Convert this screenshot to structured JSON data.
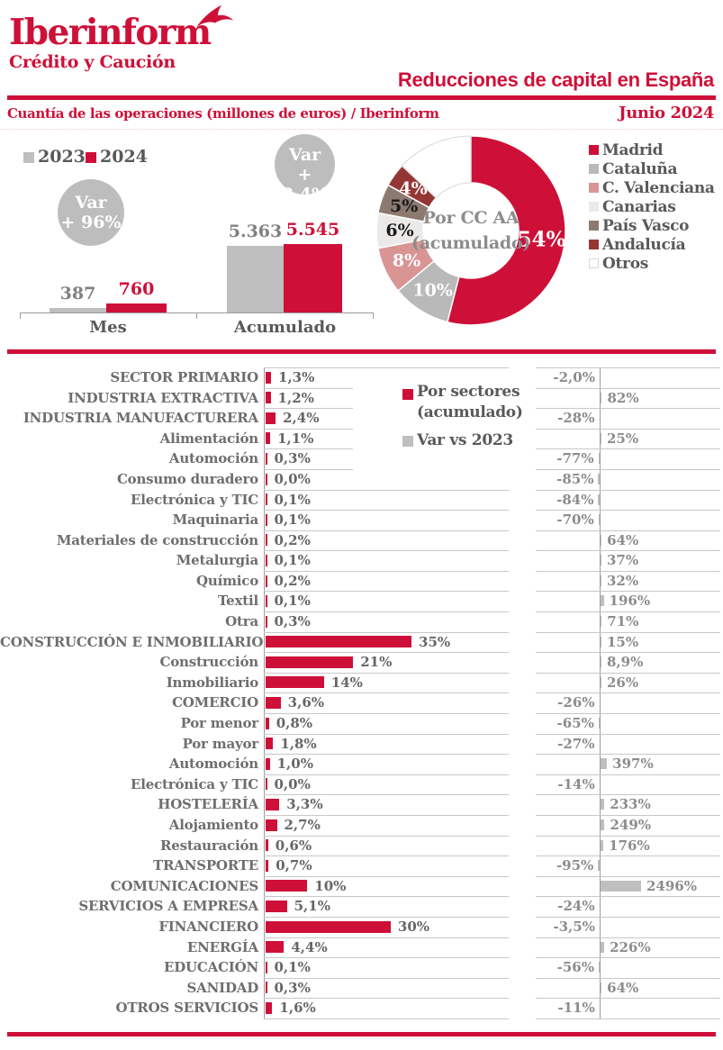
{
  "brand": {
    "name": "Iberinform",
    "tagline": "Crédito y Caución"
  },
  "header": {
    "title": "Reducciones de capital en España",
    "subtitle": "Cuantía de las operaciones (millones de euros) / Iberinform",
    "period": "Junio 2024"
  },
  "colors": {
    "red": "#CE1038",
    "gray_bar": "#BFBFBF",
    "badge_gray": "#BDBDBD",
    "text_dark": "#595959",
    "text_row": "#6E6E6E",
    "text_right": "#8C8C8C",
    "gridline": "#C8C8C8",
    "axis": "#9B9B9B"
  },
  "chart_data": [
    {
      "id": "amounts",
      "type": "bar",
      "title": "Cuantía de las operaciones (millones de euros)",
      "categories": [
        "Mes",
        "Acumulado"
      ],
      "series": [
        {
          "name": "2023",
          "color": "#BFBFBF",
          "values": [
            387,
            5363
          ],
          "value_labels": [
            "387",
            "5.363"
          ]
        },
        {
          "name": "2024",
          "color": "#CE1038",
          "values": [
            760,
            5545
          ],
          "value_labels": [
            "760",
            "5.545"
          ]
        }
      ],
      "var_badges": [
        {
          "group": "Mes",
          "line1": "Var",
          "line2": "+ 96%"
        },
        {
          "group": "Acumulado",
          "line1": "Var",
          "line2": "+ 3,4%"
        }
      ],
      "ylim": [
        0,
        5600
      ],
      "grid": false,
      "legend_position": "top-left"
    },
    {
      "id": "regions",
      "type": "pie",
      "title": "Por CC AA",
      "subtitle": "(acumulado)",
      "segments": [
        {
          "name": "Madrid",
          "value": 54,
          "label": "54%",
          "color": "#CE1038",
          "label_color": "#FFFFFF"
        },
        {
          "name": "Cataluña",
          "value": 10,
          "label": "10%",
          "color": "#B9B9B9",
          "label_color": "#FFFFFF"
        },
        {
          "name": "C. Valenciana",
          "value": 8,
          "label": "8%",
          "color": "#D89593",
          "label_color": "#FFFFFF"
        },
        {
          "name": "Canarias",
          "value": 6,
          "label": "6%",
          "color": "#ECEAE8",
          "label_color": "#1A1A1A"
        },
        {
          "name": "País Vasco",
          "value": 5,
          "label": "5%",
          "color": "#8C7A70",
          "label_color": "#1A1A1A"
        },
        {
          "name": "Andalucía",
          "value": 4,
          "label": "4%",
          "color": "#943634",
          "label_color": "#FFFFFF"
        },
        {
          "name": "Otros",
          "value": 13,
          "label": "",
          "color": "#FFFFFF",
          "label_color": "#1A1A1A",
          "outline": "#D8D8D8"
        }
      ],
      "legend_position": "right",
      "start_angle_deg": 0,
      "clockwise": true
    },
    {
      "id": "sectors",
      "type": "bar",
      "orientation": "horizontal",
      "legend": [
        {
          "label": "Por sectores",
          "label2": "(acumulado)",
          "color": "#CE1038"
        },
        {
          "label": "Var vs 2023",
          "color": "#BFBFBF"
        }
      ],
      "left_axis_max_pct": 35,
      "right_axis_max_pct": 2496,
      "rows": [
        {
          "label": "SECTOR PRIMARIO",
          "share_label": "1,3%",
          "share": 1.3,
          "var_label": "-2,0%",
          "var": -2.0
        },
        {
          "label": "INDUSTRIA EXTRACTIVA",
          "share_label": "1,2%",
          "share": 1.2,
          "var_label": "82%",
          "var": 82
        },
        {
          "label": "INDUSTRIA MANUFACTURERA",
          "share_label": "2,4%",
          "share": 2.4,
          "var_label": "-28%",
          "var": -28
        },
        {
          "label": "Alimentación",
          "share_label": "1,1%",
          "share": 1.1,
          "var_label": "25%",
          "var": 25
        },
        {
          "label": "Automoción",
          "share_label": "0,3%",
          "share": 0.3,
          "var_label": "-77%",
          "var": -77
        },
        {
          "label": "Consumo duradero",
          "share_label": "0,0%",
          "share": 0.0,
          "var_label": "-85%",
          "var": -85
        },
        {
          "label": "Electrónica y TIC",
          "share_label": "0,1%",
          "share": 0.1,
          "var_label": "-84%",
          "var": -84
        },
        {
          "label": "Maquinaria",
          "share_label": "0,1%",
          "share": 0.1,
          "var_label": "-70%",
          "var": -70
        },
        {
          "label": "Materiales de construcción",
          "share_label": "0,2%",
          "share": 0.2,
          "var_label": "64%",
          "var": 64
        },
        {
          "label": "Metalurgia",
          "share_label": "0,1%",
          "share": 0.1,
          "var_label": "37%",
          "var": 37
        },
        {
          "label": "Químico",
          "share_label": "0,2%",
          "share": 0.2,
          "var_label": "32%",
          "var": 32
        },
        {
          "label": "Textil",
          "share_label": "0,1%",
          "share": 0.1,
          "var_label": "196%",
          "var": 196
        },
        {
          "label": "Otra",
          "share_label": "0,3%",
          "share": 0.3,
          "var_label": "71%",
          "var": 71
        },
        {
          "label": "CONSTRUCCIÓN E INMOBILIARIO",
          "share_label": "35%",
          "share": 35,
          "var_label": "15%",
          "var": 15
        },
        {
          "label": "Construcción",
          "share_label": "21%",
          "share": 21,
          "var_label": "8,9%",
          "var": 8.9
        },
        {
          "label": "Inmobiliario",
          "share_label": "14%",
          "share": 14,
          "var_label": "26%",
          "var": 26
        },
        {
          "label": "COMERCIO",
          "share_label": "3,6%",
          "share": 3.6,
          "var_label": "-26%",
          "var": -26
        },
        {
          "label": "Por menor",
          "share_label": "0,8%",
          "share": 0.8,
          "var_label": "-65%",
          "var": -65
        },
        {
          "label": "Por mayor",
          "share_label": "1,8%",
          "share": 1.8,
          "var_label": "-27%",
          "var": -27
        },
        {
          "label": "Automoción",
          "share_label": "1,0%",
          "share": 1.0,
          "var_label": "397%",
          "var": 397
        },
        {
          "label": "Electrónica y TIC",
          "share_label": "0,0%",
          "share": 0.0,
          "var_label": "-14%",
          "var": -14
        },
        {
          "label": "HOSTELERÍA",
          "share_label": "3,3%",
          "share": 3.3,
          "var_label": "233%",
          "var": 233
        },
        {
          "label": "Alojamiento",
          "share_label": "2,7%",
          "share": 2.7,
          "var_label": "249%",
          "var": 249
        },
        {
          "label": "Restauración",
          "share_label": "0,6%",
          "share": 0.6,
          "var_label": "176%",
          "var": 176
        },
        {
          "label": "TRANSPORTE",
          "share_label": "0,7%",
          "share": 0.7,
          "var_label": "-95%",
          "var": -95
        },
        {
          "label": "COMUNICACIONES",
          "share_label": "10%",
          "share": 10,
          "var_label": "2496%",
          "var": 2496
        },
        {
          "label": "SERVICIOS A EMPRESA",
          "share_label": "5,1%",
          "share": 5.1,
          "var_label": "-24%",
          "var": -24
        },
        {
          "label": "FINANCIERO",
          "share_label": "30%",
          "share": 30,
          "var_label": "-3,5%",
          "var": -3.5
        },
        {
          "label": "ENERGÍA",
          "share_label": "4,4%",
          "share": 4.4,
          "var_label": "226%",
          "var": 226
        },
        {
          "label": "EDUCACIÓN",
          "share_label": "0,1%",
          "share": 0.1,
          "var_label": "-56%",
          "var": -56
        },
        {
          "label": "SANIDAD",
          "share_label": "0,3%",
          "share": 0.3,
          "var_label": "64%",
          "var": 64
        },
        {
          "label": "OTROS SERVICIOS",
          "share_label": "1,6%",
          "share": 1.6,
          "var_label": "-11%",
          "var": -11
        }
      ]
    }
  ]
}
